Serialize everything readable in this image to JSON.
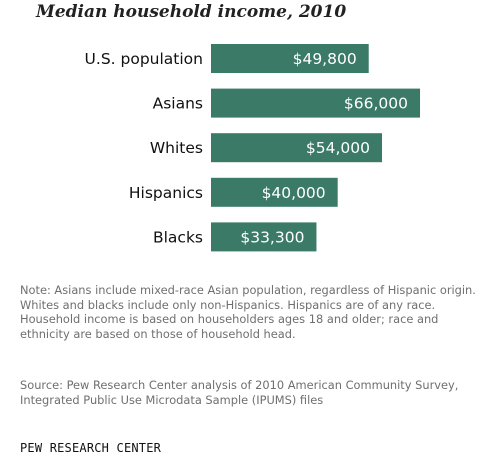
{
  "chart_data": {
    "type": "bar",
    "orientation": "horizontal",
    "title": "Median household income, 2010",
    "categories": [
      "U.S. population",
      "Asians",
      "Whites",
      "Hispanics",
      "Blacks"
    ],
    "values": [
      49800,
      66000,
      54000,
      40000,
      33300
    ],
    "value_labels": [
      "$49,800",
      "$66,000",
      "$54,000",
      "$40,000",
      "$33,300"
    ],
    "bar_color": "#3a7a66",
    "grid": false,
    "xlabel": "",
    "ylabel": ""
  },
  "footnotes": {
    "note": "Note: Asians include mixed-race Asian population, regardless of Hispanic origin. Whites and blacks include only non-Hispanics. Hispanics are of any race. Household income is based on householders ages 18 and older; race and ethnicity are based on those of household head.",
    "source": "Source: Pew Research Center analysis of 2010 American Community Survey, Integrated Public Use Microdata Sample (IPUMS) files",
    "credit": "PEW RESEARCH CENTER"
  }
}
